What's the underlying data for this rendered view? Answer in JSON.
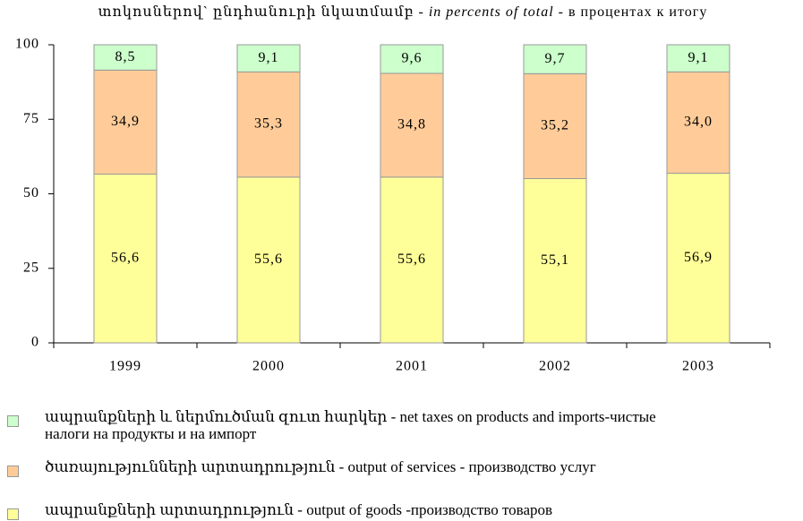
{
  "chart_data": {
    "type": "stacked_bar",
    "title": [
      "տոկոսներով` ընդհանուրի նկատմամբ - ",
      "in percents of  total",
      " - в процентах к итогу"
    ],
    "categories": [
      "1999",
      "2000",
      "2001",
      "2002",
      "2003"
    ],
    "series": [
      {
        "name": "ապրանքների արտադրություն - output of goods -производство товаров",
        "color": "#ffff99",
        "values": [
          56.6,
          55.6,
          55.6,
          55.1,
          56.9
        ],
        "value_labels": [
          "56,6",
          "55,6",
          "55,6",
          "55,1",
          "56,9"
        ]
      },
      {
        "name": "ծառայությունների արտադրություն - output of services - производство услуг",
        "color": "#ffcc99",
        "values": [
          34.9,
          35.3,
          34.8,
          35.2,
          34.0
        ],
        "value_labels": [
          "34,9",
          "35,3",
          "34,8",
          "35,2",
          "34,0"
        ]
      },
      {
        "name": "ապրանքների և ներմուծման զուտ հարկեր - net taxes on products and imports-чистые налоги на продукты и на импорт",
        "color": "#ccffcc",
        "values": [
          8.5,
          9.1,
          9.6,
          9.7,
          9.1
        ],
        "value_labels": [
          "8,5",
          "9,1",
          "9,6",
          "9,7",
          "9,1"
        ]
      }
    ],
    "ylim": [
      0,
      100
    ],
    "yticks": [
      0,
      25,
      50,
      75,
      100
    ],
    "legend": "bottom"
  }
}
